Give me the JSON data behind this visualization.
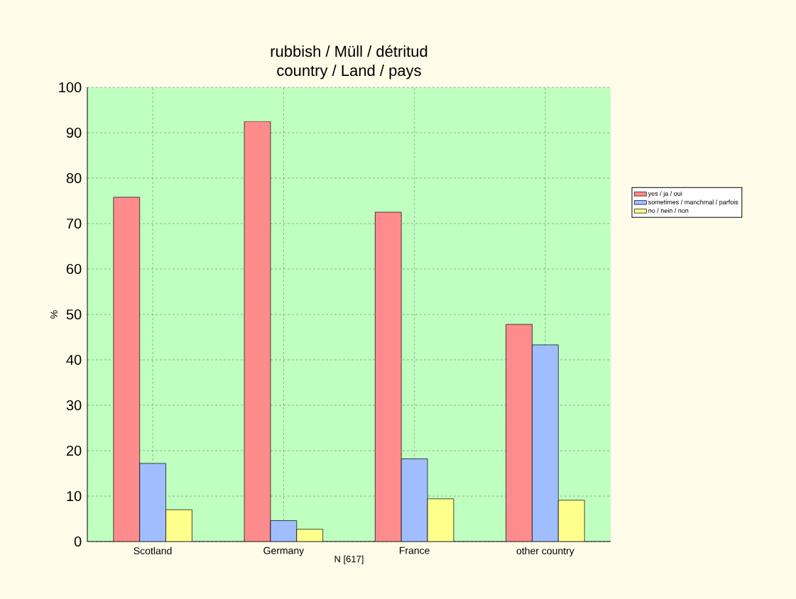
{
  "chart_data": {
    "type": "bar",
    "title": "rubbish / Müll / détritud",
    "subtitle": "country / Land / pays",
    "xlabel": "N [617]",
    "ylabel": "%",
    "categories": [
      "Scotland",
      "Germany",
      "France",
      "other country"
    ],
    "series": [
      {
        "name": "yes / ja / oui",
        "color": "#ff8c8c",
        "values": [
          75.8,
          92.5,
          72.5,
          47.8
        ]
      },
      {
        "name": "sometimes / manchmal / parfois",
        "color": "#a0beff",
        "values": [
          17.2,
          4.6,
          18.2,
          43.3
        ]
      },
      {
        "name": "no / nein / non",
        "color": "#ffff8c",
        "values": [
          7.0,
          2.7,
          9.4,
          9.1
        ]
      }
    ],
    "ylim": [
      0,
      100
    ],
    "yticks": [
      0,
      10,
      20,
      30,
      40,
      50,
      60,
      70,
      80,
      90,
      100
    ],
    "grid": true,
    "legend": "right"
  }
}
